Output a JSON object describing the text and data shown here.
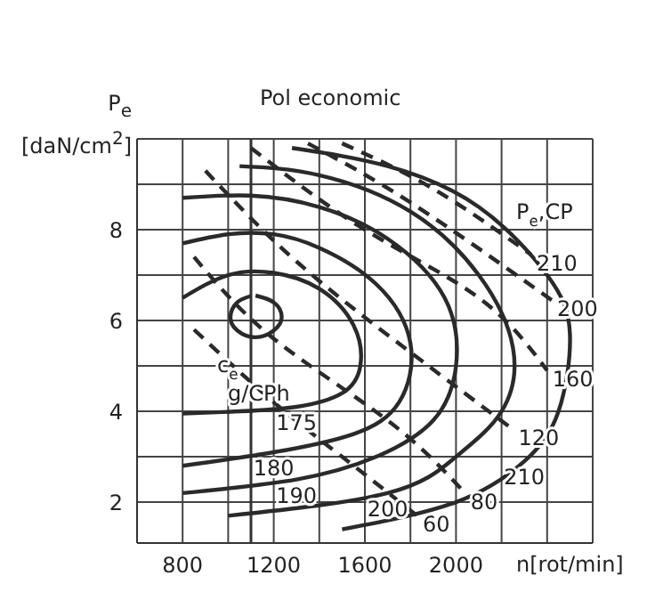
{
  "chart_data": {
    "type": "line",
    "xlabel": "n[rot/min]",
    "ylabel": "P$_{e}$ [daN/cm$^{2}$]",
    "xlim": [
      600,
      2600
    ],
    "xticks": [
      800,
      {
        "value": 1000,
        "label": null
      },
      1200,
      {
        "value": 1400,
        "label": null
      },
      1600,
      {
        "value": 1800,
        "label": null
      },
      2000,
      {
        "value": 2200,
        "label": null
      },
      {
        "value": 2400,
        "label": null
      },
      {
        "value": 2600,
        "label": null
      }
    ],
    "ylim": [
      1.1,
      10
    ],
    "yticks": [
      2,
      {
        "value": 3,
        "label": null
      },
      4,
      {
        "value": 5,
        "label": null
      },
      6,
      {
        "value": 7,
        "label": null
      },
      8,
      {
        "value": 9,
        "label": null
      },
      {
        "value": 10,
        "label": null
      }
    ],
    "grid": true,
    "color": "#2a2a2a",
    "series": [
      {
        "line_style": "solid",
        "x": [
          1120,
          1200,
          1235,
          1200,
          1120,
          1040,
          1010,
          1040,
          1100
        ],
        "values": [
          6.55,
          6.4,
          6.08,
          5.78,
          5.63,
          5.78,
          6.08,
          6.4,
          6.54
        ]
      },
      {
        "line_style": "solid",
        "x": [
          800,
          1000,
          1200,
          1400,
          1550,
          1580,
          1500,
          1300,
          1050,
          800
        ],
        "values": [
          6.5,
          7.0,
          7.05,
          6.7,
          5.9,
          5.0,
          4.4,
          4.1,
          4.0,
          3.95
        ]
      },
      {
        "line_style": "solid",
        "x": [
          800,
          1000,
          1200,
          1400,
          1650,
          1800,
          1750,
          1550,
          1200,
          800
        ],
        "values": [
          7.7,
          7.9,
          7.9,
          7.6,
          6.8,
          5.5,
          4.2,
          3.5,
          3.1,
          2.8
        ]
      },
      {
        "line_style": "solid",
        "x": [
          800,
          1100,
          1400,
          1700,
          1950,
          2000,
          1900,
          1650,
          1300,
          800
        ],
        "values": [
          8.7,
          8.75,
          8.5,
          7.8,
          6.5,
          5.0,
          3.8,
          3.0,
          2.5,
          2.2
        ]
      },
      {
        "line_style": "solid",
        "x": [
          1050,
          1400,
          1800,
          2100,
          2250,
          2200,
          2000,
          1700,
          1000
        ],
        "values": [
          9.4,
          9.2,
          8.4,
          7.0,
          5.4,
          4.0,
          3.0,
          2.2,
          1.7
        ]
      },
      {
        "line_style": "solid",
        "x": [
          1280,
          1700,
          2100,
          2400,
          2500,
          2450,
          2300,
          2000,
          1500
        ],
        "values": [
          9.8,
          9.4,
          8.5,
          7.0,
          5.7,
          4.0,
          2.9,
          2.0,
          1.4
        ]
      },
      {
        "line_style": "dashed",
        "x": [
          1500,
          1900,
          2330
        ],
        "values": [
          9.9,
          8.9,
          7.45
        ]
      },
      {
        "line_style": "dashed",
        "x": [
          1350,
          1800,
          2420
        ],
        "values": [
          9.9,
          8.6,
          6.45
        ]
      },
      {
        "line_style": "dashed",
        "x": [
          1100,
          1600,
          2100,
          2400
        ],
        "values": [
          9.8,
          8.0,
          6.5,
          4.9
        ]
      },
      {
        "line_style": "dashed",
        "x": [
          900,
          1300,
          1800,
          2250
        ],
        "values": [
          9.3,
          7.3,
          5.3,
          3.6
        ]
      },
      {
        "line_style": "dashed",
        "x": [
          850,
          1200,
          1700,
          2040
        ],
        "values": [
          7.4,
          5.6,
          3.8,
          2.2
        ]
      },
      {
        "line_style": "dashed",
        "x": [
          850,
          1200,
          1500,
          1830
        ],
        "values": [
          5.8,
          4.2,
          3.0,
          1.7
        ]
      }
    ],
    "ref_lines": [
      {
        "axis": "x",
        "value": 1100,
        "label": "Pol economic"
      }
    ],
    "annotations": [
      {
        "text": "175",
        "x": 1300,
        "y": 4.1
      },
      {
        "text": "180",
        "x": 1200,
        "y": 3.1
      },
      {
        "text": "190",
        "x": 1300,
        "y": 2.5
      },
      {
        "text": "200",
        "x": 1700,
        "y": 2.2
      },
      {
        "text": "210",
        "x": 2300,
        "y": 2.9
      },
      {
        "text": "60",
        "x": 1830,
        "y": 1.7
      },
      {
        "text": "80",
        "x": 2040,
        "y": 2.2
      },
      {
        "text": "120",
        "x": 2250,
        "y": 3.6
      },
      {
        "text": "160",
        "x": 2400,
        "y": 4.9
      },
      {
        "text": "200",
        "x": 2420,
        "y": 6.45
      },
      {
        "text": "210",
        "x": 2330,
        "y": 7.45
      },
      "P$_{e}$,CP",
      "c$_{e}$",
      "g/CPh"
    ]
  }
}
